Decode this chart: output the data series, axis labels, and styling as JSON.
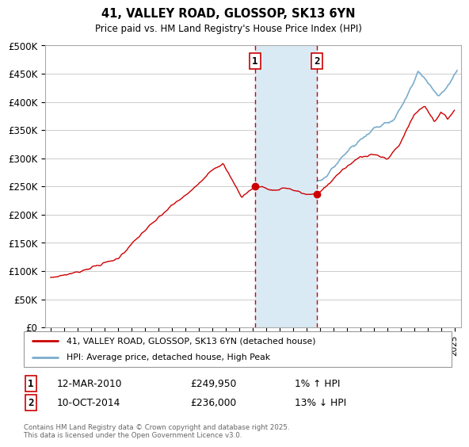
{
  "title": "41, VALLEY ROAD, GLOSSOP, SK13 6YN",
  "subtitle": "Price paid vs. HM Land Registry's House Price Index (HPI)",
  "ylabel_ticks": [
    "£0",
    "£50K",
    "£100K",
    "£150K",
    "£200K",
    "£250K",
    "£300K",
    "£350K",
    "£400K",
    "£450K",
    "£500K"
  ],
  "ytick_values": [
    0,
    50000,
    100000,
    150000,
    200000,
    250000,
    300000,
    350000,
    400000,
    450000,
    500000
  ],
  "ylim": [
    0,
    500000
  ],
  "xlim_start": 1994.6,
  "xlim_end": 2025.5,
  "event1_x": 2010.19,
  "event1_price": 249950,
  "event1_label": "1",
  "event1_date": "12-MAR-2010",
  "event1_pct": "1% ↑ HPI",
  "event2_x": 2014.77,
  "event2_price": 236000,
  "event2_label": "2",
  "event2_date": "10-OCT-2014",
  "event2_pct": "13% ↓ HPI",
  "line1_color": "#cc0000",
  "line2_color": "#7aadcc",
  "vline_color": "#cc0000",
  "shade_color": "#daeaf5",
  "legend1": "41, VALLEY ROAD, GLOSSOP, SK13 6YN (detached house)",
  "legend2": "HPI: Average price, detached house, High Peak",
  "footnote": "Contains HM Land Registry data © Crown copyright and database right 2025.\nThis data is licensed under the Open Government Licence v3.0.",
  "background_color": "#ffffff",
  "grid_color": "#cccccc"
}
